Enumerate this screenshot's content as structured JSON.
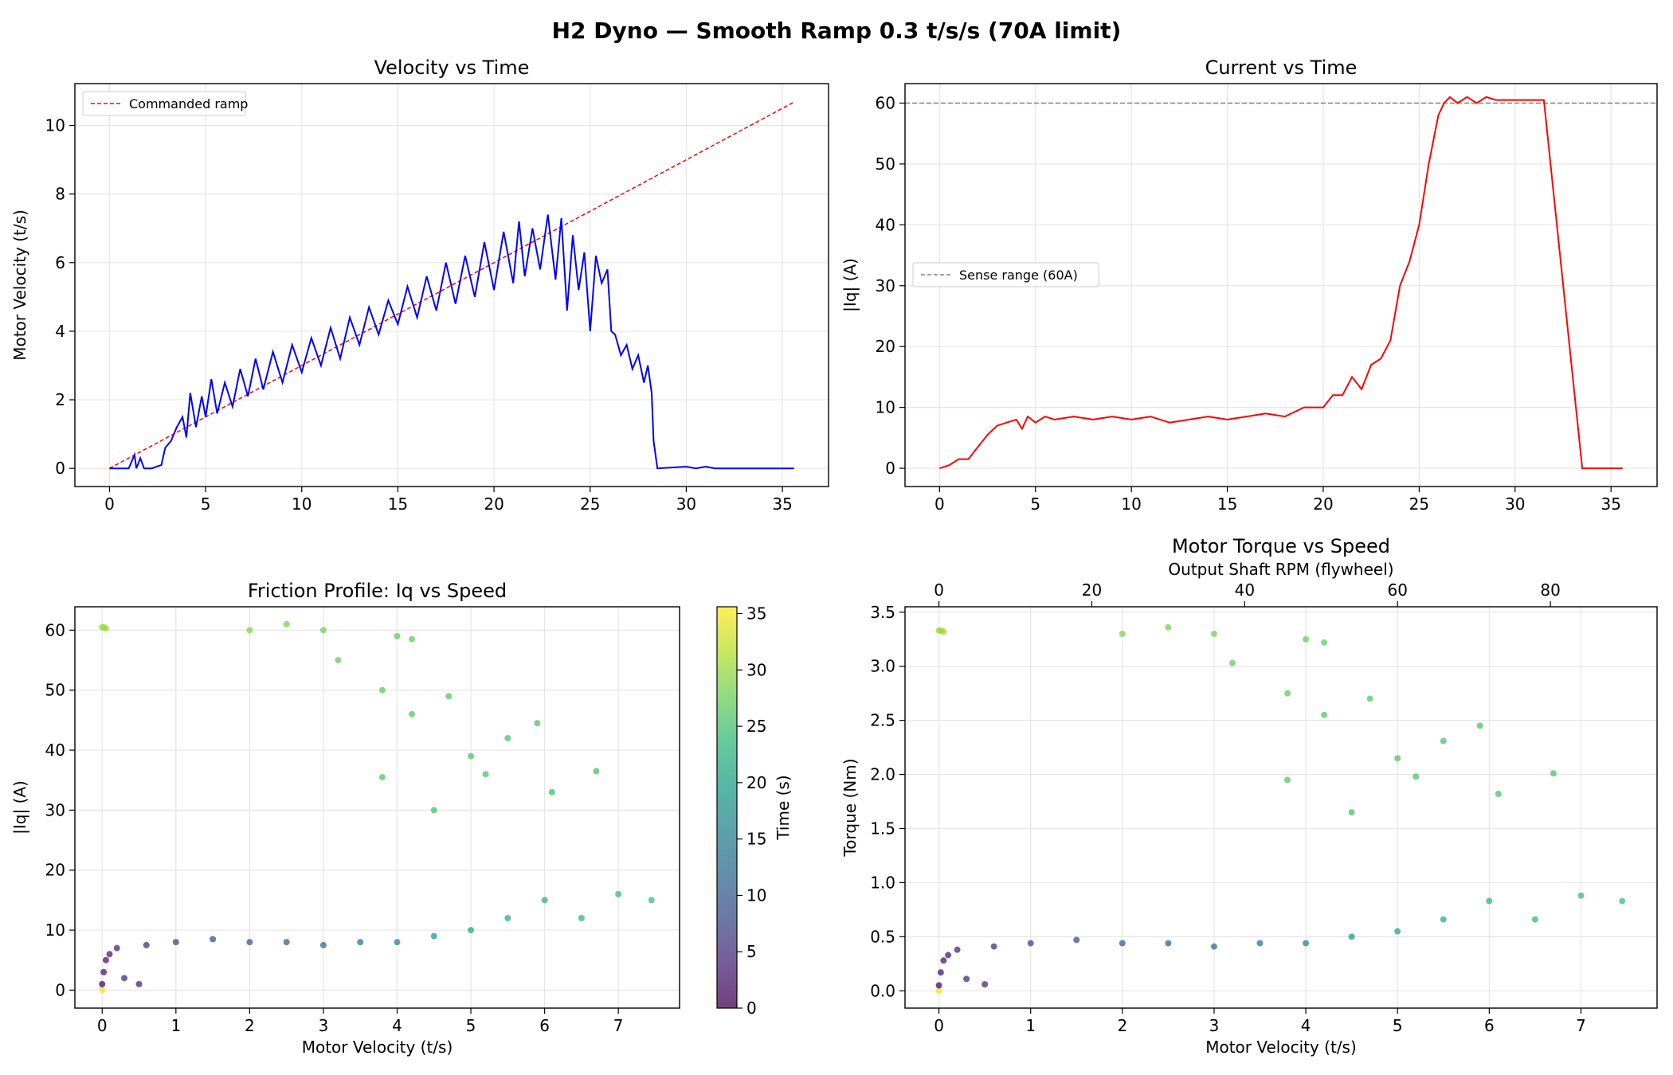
{
  "figure": {
    "suptitle": "H2 Dyno — Smooth Ramp 0.3 t/s/s (70A limit)"
  },
  "chart_data": [
    {
      "id": "vel",
      "type": "line",
      "title": "Velocity vs Time",
      "xlabel": "",
      "ylabel": "Motor Velocity (t/s)",
      "xlim": [
        -1.8,
        37.4
      ],
      "ylim": [
        -0.53,
        11.22
      ],
      "xticks": [
        0,
        5,
        10,
        15,
        20,
        25,
        30,
        35
      ],
      "yticks": [
        0,
        2,
        4,
        6,
        8,
        10
      ],
      "grid": true,
      "legend": {
        "position": "upper-left",
        "entries": [
          "Commanded ramp"
        ]
      },
      "series": [
        {
          "name": "Commanded ramp",
          "style": "dashed",
          "color": "#ff0000",
          "x": [
            0,
            35.6
          ],
          "y": [
            0,
            10.68
          ]
        },
        {
          "name": "",
          "style": "solid",
          "color": "#0000ff",
          "x": [
            0,
            1.0,
            1.3,
            1.4,
            1.6,
            1.8,
            2.2,
            2.7,
            2.9,
            3.2,
            3.5,
            3.8,
            4.0,
            4.2,
            4.5,
            4.8,
            5.0,
            5.3,
            5.6,
            6.0,
            6.4,
            6.8,
            7.2,
            7.6,
            8.0,
            8.5,
            9.0,
            9.5,
            10.0,
            10.5,
            11.0,
            11.5,
            12.0,
            12.5,
            13.0,
            13.5,
            14.0,
            14.5,
            15.0,
            15.5,
            16.0,
            16.5,
            17.0,
            17.5,
            18.0,
            18.5,
            19.0,
            19.5,
            20.0,
            20.5,
            21.0,
            21.3,
            21.6,
            22.0,
            22.4,
            22.8,
            23.2,
            23.5,
            23.8,
            24.1,
            24.4,
            24.7,
            25.0,
            25.3,
            25.6,
            25.9,
            26.1,
            26.3,
            26.6,
            26.9,
            27.2,
            27.5,
            27.8,
            28.0,
            28.2,
            28.3,
            28.5,
            30.0,
            30.5,
            31.0,
            31.5,
            32.0,
            35.6
          ],
          "y": [
            0,
            0,
            0.4,
            0,
            0.3,
            0,
            0,
            0.1,
            0.6,
            0.8,
            1.2,
            1.5,
            0.9,
            2.2,
            1.2,
            2.1,
            1.5,
            2.6,
            1.6,
            2.5,
            1.8,
            2.9,
            2.1,
            3.2,
            2.3,
            3.4,
            2.5,
            3.6,
            2.8,
            3.8,
            3.0,
            4.1,
            3.2,
            4.4,
            3.6,
            4.7,
            3.9,
            4.9,
            4.2,
            5.3,
            4.4,
            5.6,
            4.6,
            6.0,
            4.8,
            6.2,
            5.0,
            6.6,
            5.2,
            6.9,
            5.4,
            7.2,
            5.6,
            7.0,
            5.8,
            7.4,
            5.5,
            7.3,
            4.6,
            6.8,
            5.2,
            6.3,
            4.0,
            6.2,
            5.4,
            5.8,
            4.0,
            3.9,
            3.3,
            3.6,
            2.9,
            3.3,
            2.5,
            3.0,
            2.2,
            0.8,
            0,
            0.05,
            0,
            0.05,
            0,
            0,
            0
          ]
        }
      ]
    },
    {
      "id": "cur",
      "type": "line",
      "title": "Current vs Time",
      "xlabel": "",
      "ylabel": "|Iq| (A)",
      "xlim": [
        -1.8,
        37.4
      ],
      "ylim": [
        -3.0,
        63.2
      ],
      "xticks": [
        0,
        5,
        10,
        15,
        20,
        25,
        30,
        35
      ],
      "yticks": [
        0,
        10,
        20,
        30,
        40,
        50,
        60
      ],
      "grid": true,
      "legend": {
        "position": "center-left",
        "entries": [
          "Sense range (60A)"
        ]
      },
      "series": [
        {
          "name": "Sense range (60A)",
          "style": "dashed",
          "color": "#808080",
          "x": [
            -1.8,
            37.4
          ],
          "y": [
            60,
            60
          ]
        },
        {
          "name": "",
          "style": "solid",
          "color": "#ff0000",
          "x": [
            0,
            0.5,
            1.0,
            1.5,
            2.0,
            2.5,
            3.0,
            3.5,
            4.0,
            4.3,
            4.6,
            5.0,
            5.5,
            6.0,
            7.0,
            8.0,
            9.0,
            10.0,
            11.0,
            12.0,
            13.0,
            14.0,
            15.0,
            16.0,
            17.0,
            18.0,
            19.0,
            20.0,
            20.5,
            21.0,
            21.5,
            22.0,
            22.5,
            23.0,
            23.5,
            24.0,
            24.5,
            25.0,
            25.5,
            26.0,
            26.3,
            26.6,
            27.0,
            27.5,
            28.0,
            28.5,
            29.0,
            30.0,
            31.0,
            31.5,
            33.5,
            35.6
          ],
          "y": [
            0,
            0.5,
            1.5,
            1.5,
            3.5,
            5.5,
            7,
            7.5,
            8,
            6.5,
            8.5,
            7.5,
            8.5,
            8,
            8.5,
            8,
            8.5,
            8,
            8.5,
            7.5,
            8,
            8.5,
            8,
            8.5,
            9,
            8.5,
            10,
            10,
            12,
            12,
            15,
            13,
            17,
            18,
            21,
            30,
            34,
            40,
            50,
            58,
            60,
            61,
            60,
            61,
            60,
            61,
            60.5,
            60.5,
            60.5,
            60.5,
            0,
            0
          ]
        }
      ]
    },
    {
      "id": "fric",
      "type": "scatter",
      "title": "Friction Profile: Iq vs Speed",
      "xlabel": "Motor Velocity (t/s)",
      "ylabel": "|Iq| (A)",
      "xlim": [
        -0.37,
        7.83
      ],
      "ylim": [
        -3.0,
        63.9
      ],
      "xticks": [
        0,
        1,
        2,
        3,
        4,
        5,
        6,
        7
      ],
      "yticks": [
        0,
        10,
        20,
        30,
        40,
        50,
        60
      ],
      "grid": true,
      "colorbar": {
        "label": "Time (s)",
        "range": [
          0,
          35.6
        ],
        "ticks": [
          0,
          5,
          10,
          15,
          20,
          25,
          30,
          35
        ]
      },
      "points": [
        {
          "x": 0,
          "y": 60.5,
          "t": 30
        },
        {
          "x": 0.02,
          "y": 60.5,
          "t": 31
        },
        {
          "x": 0.05,
          "y": 60.3,
          "t": 30
        },
        {
          "x": 0,
          "y": 0,
          "t": 35
        },
        {
          "x": 0,
          "y": 1,
          "t": 1
        },
        {
          "x": 0.02,
          "y": 3,
          "t": 2
        },
        {
          "x": 0.05,
          "y": 5,
          "t": 2.5
        },
        {
          "x": 0.1,
          "y": 6,
          "t": 3
        },
        {
          "x": 0.2,
          "y": 7,
          "t": 4
        },
        {
          "x": 0.3,
          "y": 2,
          "t": 4
        },
        {
          "x": 0.5,
          "y": 1,
          "t": 3.5
        },
        {
          "x": 0.6,
          "y": 7.5,
          "t": 5
        },
        {
          "x": 1.0,
          "y": 8,
          "t": 7
        },
        {
          "x": 1.5,
          "y": 8.5,
          "t": 9
        },
        {
          "x": 2.0,
          "y": 8,
          "t": 10
        },
        {
          "x": 2.5,
          "y": 8,
          "t": 11
        },
        {
          "x": 3.0,
          "y": 7.5,
          "t": 12
        },
        {
          "x": 3.5,
          "y": 8,
          "t": 14
        },
        {
          "x": 4.0,
          "y": 8,
          "t": 16
        },
        {
          "x": 4.5,
          "y": 9,
          "t": 19
        },
        {
          "x": 5.0,
          "y": 10,
          "t": 21
        },
        {
          "x": 5.5,
          "y": 12,
          "t": 22
        },
        {
          "x": 6.0,
          "y": 15,
          "t": 23
        },
        {
          "x": 6.5,
          "y": 12,
          "t": 23.5
        },
        {
          "x": 7.0,
          "y": 16,
          "t": 24
        },
        {
          "x": 7.45,
          "y": 15,
          "t": 24.5
        },
        {
          "x": 5.0,
          "y": 39,
          "t": 25.5
        },
        {
          "x": 5.5,
          "y": 42,
          "t": 25.2
        },
        {
          "x": 5.9,
          "y": 44.5,
          "t": 25.5
        },
        {
          "x": 5.2,
          "y": 36,
          "t": 25.3
        },
        {
          "x": 6.7,
          "y": 36.5,
          "t": 25
        },
        {
          "x": 6.1,
          "y": 33,
          "t": 25
        },
        {
          "x": 4.5,
          "y": 30,
          "t": 25.2
        },
        {
          "x": 4.7,
          "y": 49,
          "t": 26
        },
        {
          "x": 4.2,
          "y": 46,
          "t": 26
        },
        {
          "x": 3.8,
          "y": 50,
          "t": 26.5
        },
        {
          "x": 3.8,
          "y": 35.5,
          "t": 26
        },
        {
          "x": 3.2,
          "y": 55,
          "t": 27
        },
        {
          "x": 3.0,
          "y": 60,
          "t": 28
        },
        {
          "x": 2.5,
          "y": 61,
          "t": 28
        },
        {
          "x": 2.0,
          "y": 60,
          "t": 28.5
        },
        {
          "x": 4.0,
          "y": 59,
          "t": 27
        },
        {
          "x": 4.2,
          "y": 58.5,
          "t": 27
        }
      ]
    },
    {
      "id": "torq",
      "type": "scatter",
      "title": "Motor Torque vs Speed",
      "xlabel": "Motor Velocity (t/s)",
      "ylabel": "Torque (Nm)",
      "x2label": "Output Shaft RPM (flywheel)",
      "xlim": [
        -0.37,
        7.83
      ],
      "ylim": [
        -0.16,
        3.55
      ],
      "xticks": [
        0,
        1,
        2,
        3,
        4,
        5,
        6,
        7
      ],
      "yticks": [
        0.0,
        0.5,
        1.0,
        1.5,
        2.0,
        2.5,
        3.0,
        3.5
      ],
      "x2ticks": [
        0,
        20,
        40,
        60,
        80
      ],
      "x2_per_x": 12,
      "grid": true,
      "points": [
        {
          "x": 0,
          "y": 3.33,
          "t": 30
        },
        {
          "x": 0.02,
          "y": 3.33,
          "t": 31
        },
        {
          "x": 0.05,
          "y": 3.32,
          "t": 30
        },
        {
          "x": 0,
          "y": 0,
          "t": 35
        },
        {
          "x": 0,
          "y": 0.05,
          "t": 1
        },
        {
          "x": 0.02,
          "y": 0.17,
          "t": 2
        },
        {
          "x": 0.05,
          "y": 0.28,
          "t": 2.5
        },
        {
          "x": 0.1,
          "y": 0.33,
          "t": 3
        },
        {
          "x": 0.2,
          "y": 0.38,
          "t": 4
        },
        {
          "x": 0.3,
          "y": 0.11,
          "t": 4
        },
        {
          "x": 0.5,
          "y": 0.06,
          "t": 3.5
        },
        {
          "x": 0.6,
          "y": 0.41,
          "t": 5
        },
        {
          "x": 1.0,
          "y": 0.44,
          "t": 7
        },
        {
          "x": 1.5,
          "y": 0.47,
          "t": 9
        },
        {
          "x": 2.0,
          "y": 0.44,
          "t": 10
        },
        {
          "x": 2.5,
          "y": 0.44,
          "t": 11
        },
        {
          "x": 3.0,
          "y": 0.41,
          "t": 12
        },
        {
          "x": 3.5,
          "y": 0.44,
          "t": 14
        },
        {
          "x": 4.0,
          "y": 0.44,
          "t": 16
        },
        {
          "x": 4.5,
          "y": 0.5,
          "t": 19
        },
        {
          "x": 5.0,
          "y": 0.55,
          "t": 21
        },
        {
          "x": 5.5,
          "y": 0.66,
          "t": 22
        },
        {
          "x": 6.0,
          "y": 0.83,
          "t": 23
        },
        {
          "x": 6.5,
          "y": 0.66,
          "t": 23.5
        },
        {
          "x": 7.0,
          "y": 0.88,
          "t": 24
        },
        {
          "x": 7.45,
          "y": 0.83,
          "t": 24.5
        },
        {
          "x": 5.0,
          "y": 2.15,
          "t": 25.5
        },
        {
          "x": 5.5,
          "y": 2.31,
          "t": 25.2
        },
        {
          "x": 5.9,
          "y": 2.45,
          "t": 25.5
        },
        {
          "x": 5.2,
          "y": 1.98,
          "t": 25.3
        },
        {
          "x": 6.7,
          "y": 2.01,
          "t": 25
        },
        {
          "x": 6.1,
          "y": 1.82,
          "t": 25
        },
        {
          "x": 4.5,
          "y": 1.65,
          "t": 25.2
        },
        {
          "x": 4.7,
          "y": 2.7,
          "t": 26
        },
        {
          "x": 4.2,
          "y": 2.55,
          "t": 26
        },
        {
          "x": 3.8,
          "y": 2.75,
          "t": 26.5
        },
        {
          "x": 3.8,
          "y": 1.95,
          "t": 26
        },
        {
          "x": 3.2,
          "y": 3.03,
          "t": 27
        },
        {
          "x": 3.0,
          "y": 3.3,
          "t": 28
        },
        {
          "x": 2.5,
          "y": 3.36,
          "t": 28
        },
        {
          "x": 2.0,
          "y": 3.3,
          "t": 28.5
        },
        {
          "x": 4.0,
          "y": 3.25,
          "t": 27
        },
        {
          "x": 4.2,
          "y": 3.22,
          "t": 27
        }
      ]
    }
  ]
}
